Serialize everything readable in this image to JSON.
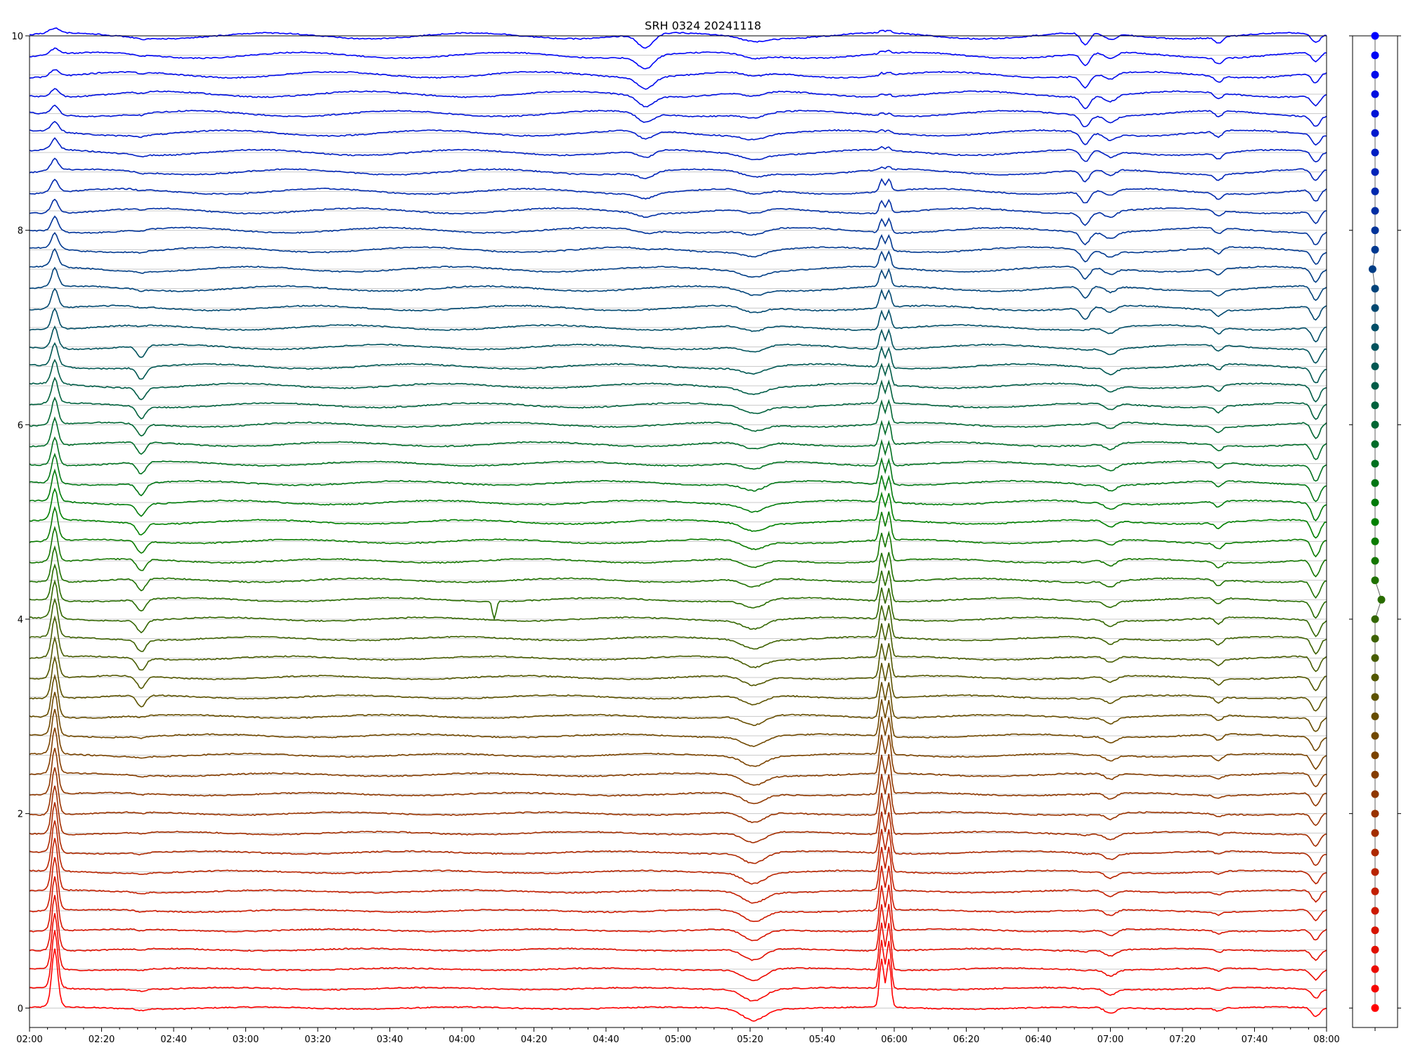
{
  "chart_data": {
    "type": "line",
    "title": "SRH 0324 20241118",
    "xlabel": "",
    "ylabel": "",
    "xlim": [
      "02:00",
      "08:00"
    ],
    "ylim": [
      -0.2,
      10
    ],
    "x_tick_labels": [
      "02:00",
      "02:20",
      "02:40",
      "03:00",
      "03:20",
      "03:40",
      "04:00",
      "04:20",
      "04:40",
      "05:00",
      "05:20",
      "05:40",
      "06:00",
      "06:20",
      "06:40",
      "07:00",
      "07:20",
      "07:40",
      "08:00"
    ],
    "y_ticks": [
      0,
      2,
      4,
      6,
      8,
      10
    ],
    "y_tick_labels": [
      "0",
      "2",
      "4",
      "6",
      "8",
      "10"
    ],
    "grid": "horizontal baselines per trace",
    "legend": "none",
    "series_count": 51,
    "series_offset_step": 0.2,
    "series_color_start": "#ff0000",
    "series_color_mid": "#008000",
    "series_color_end": "#0000ff",
    "events": [
      {
        "time": "02:07",
        "description": "sharp spike, strongest on lower traces"
      },
      {
        "time": "02:31",
        "description": "dip on middle traces"
      },
      {
        "time": "04:09",
        "description": "narrow negative spike on one trace"
      },
      {
        "time": "04:50",
        "description": "dip on upper traces, bump on middle traces"
      },
      {
        "time": "05:20",
        "description": "broad dip on most traces"
      },
      {
        "time": "05:55",
        "description": "double spike on lower and middle traces"
      },
      {
        "time": "06:53",
        "description": "dip on upper traces"
      },
      {
        "time": "07:00",
        "description": "dip on middle traces"
      },
      {
        "time": "07:30",
        "description": "dip on middle traces"
      },
      {
        "time": "07:57",
        "description": "strong dip on most traces"
      }
    ],
    "side_panel": {
      "type": "scatter",
      "description": "per-trace marker column with connecting line",
      "points": 51,
      "x_offsets": [
        0.0,
        0.0,
        0.0,
        0.0,
        0.0,
        0.0,
        0.0,
        0.0,
        0.0,
        0.0,
        0.0,
        0.0,
        0.0,
        0.0,
        0.0,
        0.0,
        0.0,
        0.0,
        0.0,
        0.0,
        0.0,
        0.05,
        0.0,
        0.0,
        0.0,
        0.0,
        0.0,
        0.0,
        0.0,
        0.0,
        0.0,
        0.0,
        0.0,
        0.0,
        0.0,
        0.0,
        0.0,
        0.0,
        -0.02,
        0.0,
        0.0,
        0.0,
        0.0,
        0.0,
        0.0,
        0.0,
        0.0,
        0.0,
        0.0,
        0.0,
        0.0
      ]
    }
  }
}
